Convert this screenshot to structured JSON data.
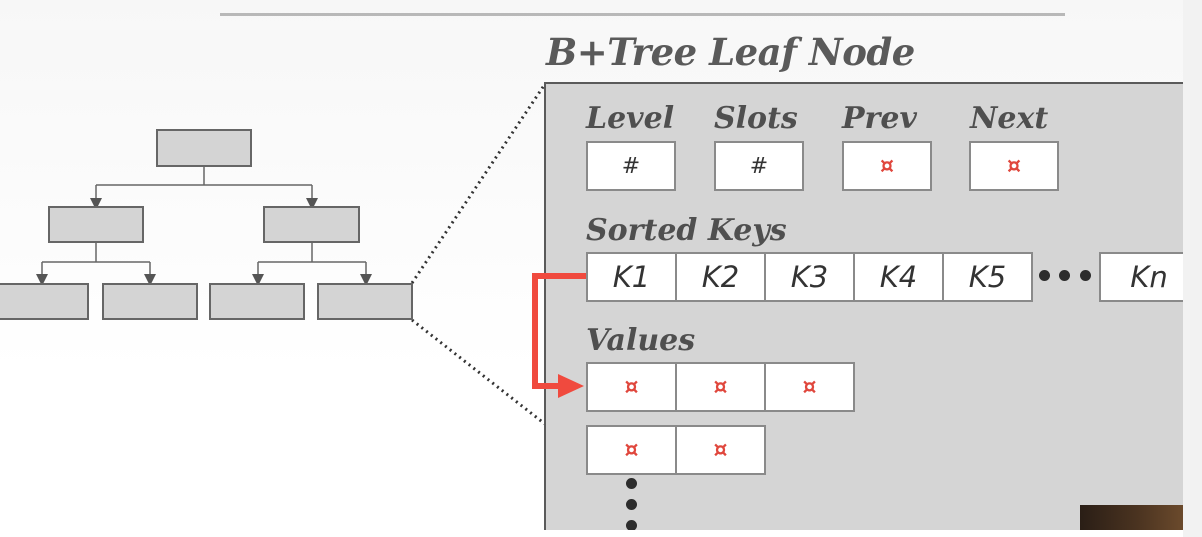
{
  "title": "B+Tree Leaf Node",
  "header_fields": [
    {
      "label": "Level",
      "value": "#"
    },
    {
      "label": "Slots",
      "value": "#"
    },
    {
      "label": "Prev",
      "value": "¤"
    },
    {
      "label": "Next",
      "value": "¤"
    }
  ],
  "sorted_keys": {
    "label": "Sorted Keys",
    "keys": [
      "K1",
      "K2",
      "K3",
      "K4",
      "K5"
    ],
    "last_key": "Kn"
  },
  "values": {
    "label": "Values",
    "row1": [
      "¤",
      "¤",
      "¤"
    ],
    "row2": [
      "¤",
      "¤"
    ]
  },
  "colors": {
    "pointer": "#e0473d",
    "arrow": "#f04a3e",
    "node_fill": "#d4d4d4",
    "panel_fill": "#d5d5d5"
  }
}
